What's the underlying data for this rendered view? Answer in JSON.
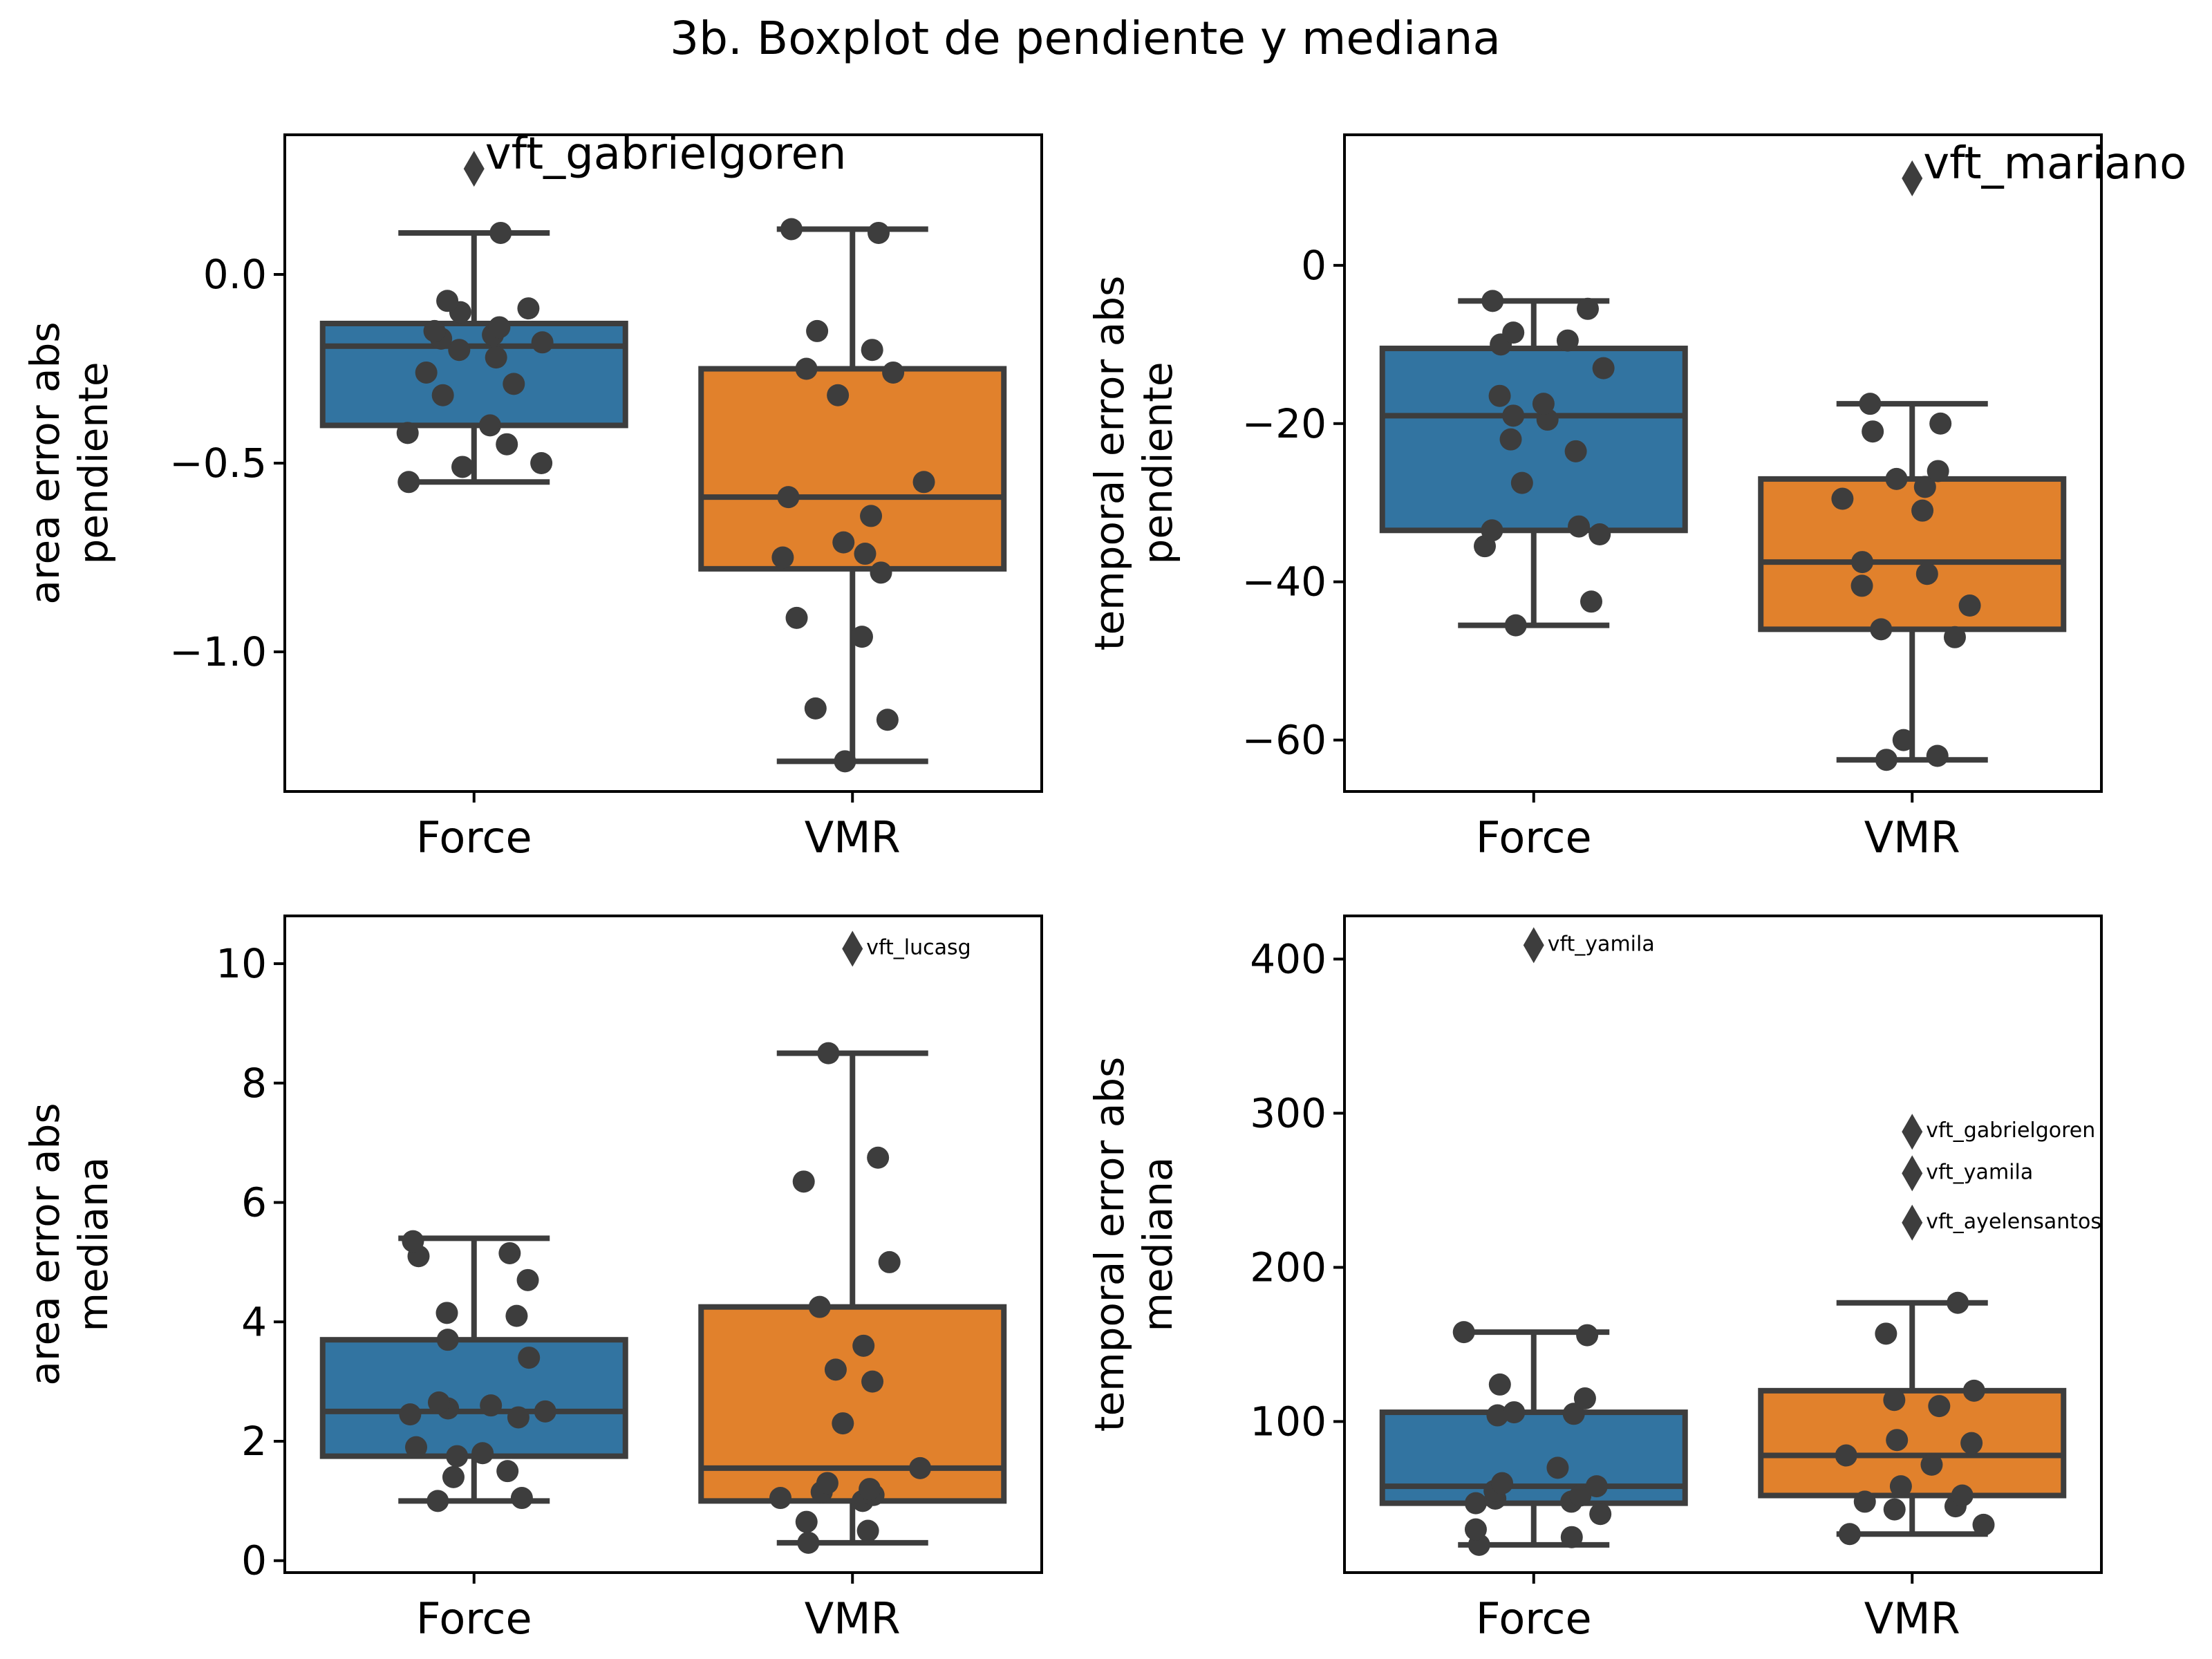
{
  "figure": {
    "title": "3b. Boxplot de pendiente y mediana"
  },
  "colors": {
    "force": "#3274a1",
    "vmr": "#e1812c",
    "line": "#3d3d3d",
    "point": "#3d3d3d"
  },
  "chart_data": [
    {
      "type": "box",
      "ylabel": "area error abs\npendiente",
      "categories": [
        "Force",
        "VMR"
      ],
      "ylim": [
        -1.37,
        0.37
      ],
      "yticks": [
        0.0,
        -0.5,
        -1.0
      ],
      "ytick_labels": [
        "0.0",
        "−0.5",
        "−1.0"
      ],
      "grid": false,
      "annotation_size": "large",
      "boxes": [
        {
          "q1": -0.4,
          "median": -0.19,
          "q3": -0.13,
          "whisker_low": -0.55,
          "whisker_high": 0.11,
          "points": [
            -0.55,
            -0.5,
            -0.51,
            -0.45,
            -0.42,
            -0.4,
            -0.32,
            -0.29,
            -0.26,
            -0.22,
            -0.2,
            -0.18,
            -0.17,
            -0.16,
            -0.15,
            -0.14,
            -0.1,
            -0.09,
            -0.07,
            0.11
          ],
          "outliers": [
            {
              "value": 0.28,
              "label": "vft_gabrielgoren"
            }
          ]
        },
        {
          "q1": -0.78,
          "median": -0.59,
          "q3": -0.25,
          "whisker_low": -1.29,
          "whisker_high": 0.12,
          "points": [
            -1.29,
            -1.18,
            -1.15,
            -0.96,
            -0.91,
            -0.79,
            -0.75,
            -0.74,
            -0.71,
            -0.64,
            -0.59,
            -0.55,
            -0.32,
            -0.26,
            -0.25,
            -0.2,
            -0.15,
            0.11,
            0.12
          ],
          "outliers": []
        }
      ]
    },
    {
      "type": "box",
      "ylabel": "temporal error abs\npendiente",
      "categories": [
        "Force",
        "VMR"
      ],
      "ylim": [
        -66.5,
        16.5
      ],
      "yticks": [
        0,
        -20,
        -40,
        -60
      ],
      "ytick_labels": [
        "0",
        "−20",
        "−40",
        "−60"
      ],
      "grid": false,
      "annotation_size": "large",
      "boxes": [
        {
          "q1": -33.5,
          "median": -19,
          "q3": -10.5,
          "whisker_low": -45.5,
          "whisker_high": -4.5,
          "points": [
            -45.5,
            -42.5,
            -35.5,
            -34,
            -33.5,
            -33,
            -27.5,
            -23.5,
            -22,
            -19.5,
            -19,
            -17.5,
            -16.5,
            -13,
            -10,
            -9.5,
            -8.5,
            -5.5,
            -4.5
          ],
          "outliers": []
        },
        {
          "q1": -46,
          "median": -37.5,
          "q3": -27,
          "whisker_low": -62.5,
          "whisker_high": -17.5,
          "points": [
            -62.5,
            -62,
            -60,
            -47,
            -46,
            -43,
            -40.5,
            -39,
            -37.5,
            -31,
            -29.5,
            -28,
            -27,
            -26,
            -21,
            -20,
            -17.5
          ],
          "outliers": [
            {
              "value": 11,
              "label": "vft_mariano"
            }
          ]
        }
      ]
    },
    {
      "type": "box",
      "ylabel": "area error abs\nmediana",
      "categories": [
        "Force",
        "VMR"
      ],
      "ylim": [
        -0.2,
        10.8
      ],
      "yticks": [
        0,
        2,
        4,
        6,
        8,
        10
      ],
      "ytick_labels": [
        "0",
        "2",
        "4",
        "6",
        "8",
        "10"
      ],
      "grid": false,
      "annotation_size": "small",
      "boxes": [
        {
          "q1": 1.75,
          "median": 2.5,
          "q3": 3.7,
          "whisker_low": 1.0,
          "whisker_high": 5.4,
          "points": [
            1.0,
            1.05,
            1.4,
            1.5,
            1.75,
            1.8,
            1.9,
            2.4,
            2.45,
            2.5,
            2.55,
            2.6,
            2.65,
            3.4,
            3.7,
            4.1,
            4.15,
            4.7,
            5.1,
            5.15,
            5.35
          ],
          "outliers": []
        },
        {
          "q1": 1.0,
          "median": 1.55,
          "q3": 4.25,
          "whisker_low": 0.3,
          "whisker_high": 8.5,
          "points": [
            0.3,
            0.5,
            0.65,
            1.0,
            1.05,
            1.1,
            1.15,
            1.2,
            1.3,
            1.55,
            2.3,
            3.0,
            3.2,
            3.6,
            4.25,
            5.0,
            6.35,
            6.75,
            8.5
          ],
          "outliers": [
            {
              "value": 10.25,
              "label": "vft_lucasg"
            }
          ]
        }
      ]
    },
    {
      "type": "box",
      "ylabel": "temporal error abs\nmediana",
      "categories": [
        "Force",
        "VMR"
      ],
      "ylim": [
        2,
        428
      ],
      "yticks": [
        100,
        200,
        300,
        400
      ],
      "ytick_labels": [
        "100",
        "200",
        "300",
        "400"
      ],
      "grid": false,
      "annotation_size": "small",
      "boxes": [
        {
          "q1": 47,
          "median": 58,
          "q3": 106,
          "whisker_low": 20,
          "whisker_high": 158,
          "points": [
            20,
            25,
            30,
            40,
            47,
            48,
            50,
            52,
            55,
            58,
            60,
            70,
            104,
            105,
            106,
            115,
            124,
            156,
            158
          ],
          "outliers": [
            {
              "value": 409,
              "label": "vft_yamila"
            }
          ]
        },
        {
          "q1": 52,
          "median": 78,
          "q3": 120,
          "whisker_low": 27,
          "whisker_high": 177,
          "points": [
            27,
            33,
            43,
            45,
            48,
            52,
            58,
            72,
            78,
            86,
            88,
            110,
            114,
            120,
            157,
            177
          ],
          "outliers": [
            {
              "value": 288,
              "label": "vft_gabrielgoren"
            },
            {
              "value": 261,
              "label": "vft_yamila"
            },
            {
              "value": 229,
              "label": "vft_ayelensantos"
            }
          ]
        }
      ]
    }
  ]
}
